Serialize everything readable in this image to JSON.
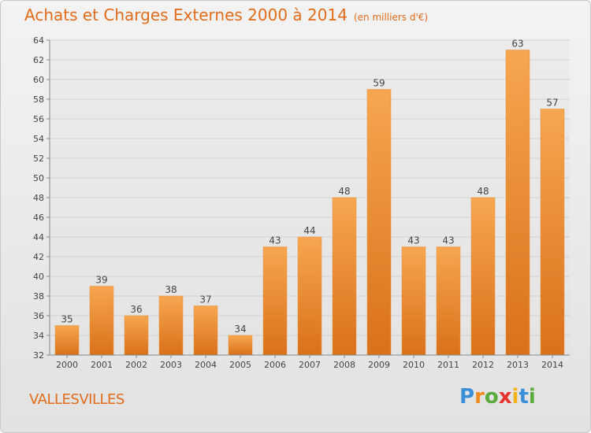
{
  "title": "Achats et Charges Externes 2000 à 2014",
  "subtitle": "(en milliers d'€)",
  "commune": "VALLESVILLES",
  "brand": "Proxiti",
  "colors": {
    "accent": "#e36c1a",
    "bar_light": "#f7a650",
    "bar_dark": "#e07d1e"
  },
  "chart_data": {
    "type": "bar",
    "categories": [
      "2000",
      "2001",
      "2002",
      "2003",
      "2004",
      "2005",
      "2006",
      "2007",
      "2008",
      "2009",
      "2010",
      "2011",
      "2012",
      "2013",
      "2014"
    ],
    "values": [
      35,
      39,
      36,
      38,
      37,
      34,
      43,
      44,
      48,
      59,
      43,
      43,
      48,
      63,
      57
    ],
    "ylim": [
      32,
      64
    ],
    "yticks": [
      32,
      34,
      36,
      38,
      40,
      42,
      44,
      46,
      48,
      50,
      52,
      54,
      56,
      58,
      60,
      62,
      64
    ],
    "grid": true
  }
}
